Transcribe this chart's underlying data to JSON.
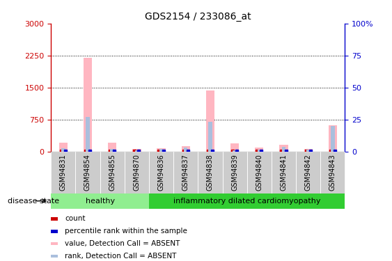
{
  "title": "GDS2154 / 233086_at",
  "samples": [
    "GSM94831",
    "GSM94854",
    "GSM94855",
    "GSM94870",
    "GSM94836",
    "GSM94837",
    "GSM94838",
    "GSM94839",
    "GSM94840",
    "GSM94841",
    "GSM94842",
    "GSM94843"
  ],
  "values_absent": [
    200,
    2200,
    210,
    65,
    80,
    130,
    1430,
    180,
    85,
    155,
    55,
    620
  ],
  "ranks_absent_pct": [
    2.5,
    27,
    2,
    1,
    2,
    3,
    23,
    1,
    1.5,
    3.5,
    1.5,
    20
  ],
  "ylim_left": [
    0,
    3000
  ],
  "ylim_right": [
    0,
    100
  ],
  "yticks_left": [
    0,
    750,
    1500,
    2250,
    3000
  ],
  "yticks_right": [
    0,
    25,
    50,
    75,
    100
  ],
  "ytick_right_labels": [
    "0",
    "25",
    "50",
    "75",
    "100%"
  ],
  "groups": [
    {
      "label": "healthy",
      "indices": [
        0,
        3
      ],
      "color": "#90EE90"
    },
    {
      "label": "inflammatory dilated cardiomyopathy",
      "indices": [
        4,
        11
      ],
      "color": "#32CD32"
    }
  ],
  "disease_state_label": "disease state",
  "bar_color_absent_value": "#FFB6C1",
  "bar_color_absent_rank": "#AABFDD",
  "marker_color_count": "#CC0000",
  "marker_color_rank": "#0000CC",
  "bg_color": "#FFFFFF",
  "gridline_color": "#000000",
  "legend_items": [
    {
      "label": "count",
      "color": "#CC0000"
    },
    {
      "label": "percentile rank within the sample",
      "color": "#0000CC"
    },
    {
      "label": "value, Detection Call = ABSENT",
      "color": "#FFB6C1"
    },
    {
      "label": "rank, Detection Call = ABSENT",
      "color": "#AABFDD"
    }
  ]
}
